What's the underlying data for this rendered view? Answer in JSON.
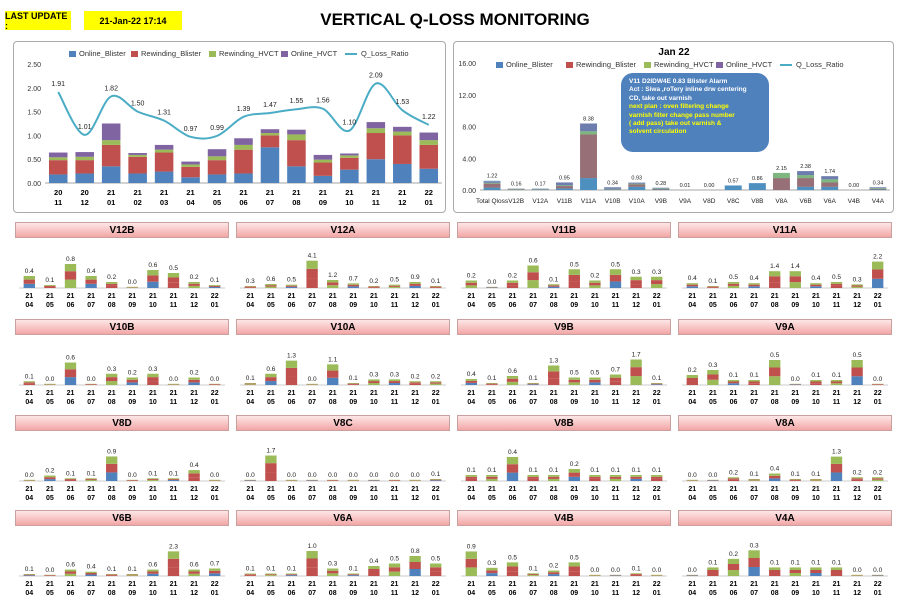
{
  "header": {
    "last_update_label": "LAST UPDATE :",
    "last_update_value": "21-Jan-22 17:14",
    "title": "VERTICAL Q-LOSS MONITORING"
  },
  "colors": {
    "online_blister": "#4f81bd",
    "rewinding_blister": "#c0504d",
    "rewinding_hvct": "#9bbb59",
    "online_hvct": "#8064a2",
    "q_loss_ratio": "#4bacc6"
  },
  "legend": [
    "Online_Blister",
    "Rewinding_Blister",
    "Rewinding_HVCT",
    "Online_HVCT",
    "Q_Loss_Ratio"
  ],
  "chart_data": [
    {
      "type": "bar",
      "id": "trend",
      "stacked": true,
      "categories": [
        "20 11",
        "20 12",
        "21 01",
        "21 02",
        "21 03",
        "21 04",
        "21 05",
        "21 06",
        "21 07",
        "21 08",
        "21 09",
        "21 10",
        "21 11",
        "21 12",
        "22 01"
      ],
      "ylim": [
        0,
        2.5
      ],
      "yticks": [
        "0.00",
        "0.50",
        "1.00",
        "1.50",
        "2.00",
        "2.50"
      ],
      "series": [
        {
          "name": "Online_Blister",
          "values": [
            0.18,
            0.2,
            0.35,
            0.2,
            0.24,
            0.12,
            0.18,
            0.2,
            0.75,
            0.35,
            0.15,
            0.28,
            0.5,
            0.4,
            0.3
          ]
        },
        {
          "name": "Rewinding_Blister",
          "values": [
            0.3,
            0.28,
            0.45,
            0.35,
            0.4,
            0.22,
            0.3,
            0.5,
            0.25,
            0.55,
            0.28,
            0.25,
            0.55,
            0.6,
            0.5
          ]
        },
        {
          "name": "Rewinding_HVCT",
          "values": [
            0.06,
            0.07,
            0.1,
            0.04,
            0.06,
            0.05,
            0.08,
            0.1,
            0.05,
            0.12,
            0.06,
            0.05,
            0.1,
            0.08,
            0.1
          ]
        },
        {
          "name": "Online_HVCT",
          "values": [
            0.1,
            0.1,
            0.35,
            0.04,
            0.1,
            0.06,
            0.15,
            0.14,
            0.08,
            0.1,
            0.1,
            0.04,
            0.13,
            0.1,
            0.16
          ]
        }
      ],
      "line": {
        "name": "Q_Loss_Ratio",
        "values": [
          1.91,
          1.01,
          1.82,
          1.5,
          1.31,
          0.97,
          0.99,
          1.39,
          1.47,
          1.55,
          1.56,
          1.1,
          2.09,
          1.53,
          1.22
        ]
      },
      "line_labels": [
        "1.91",
        "1.01",
        "1.82",
        "1.50",
        "1.31",
        "0.97",
        "0.99",
        "1.39",
        "1.47",
        "1.55",
        "1.56",
        "1.10",
        "2.09",
        "1.53",
        "1.22"
      ]
    },
    {
      "type": "bar",
      "id": "jan22",
      "stacked": true,
      "title": "Jan 22",
      "categories": [
        "Total Qloss",
        "V12B",
        "V12A",
        "V11B",
        "V11A",
        "V10B",
        "V10A",
        "V9B",
        "V9A",
        "V8D",
        "V8C",
        "V8B",
        "V8A",
        "V6B",
        "V6A",
        "V4B",
        "V4A"
      ],
      "ylim": [
        0,
        16
      ],
      "yticks": [
        "0.00",
        "4.00",
        "8.00",
        "12.00",
        "16.00"
      ],
      "series": [
        {
          "name": "Online_Blister",
          "values": [
            0.3,
            0.02,
            0.05,
            0.2,
            1.5,
            0.05,
            0.4,
            0.05,
            0,
            0,
            0.57,
            0.86,
            0,
            0.4,
            0.4,
            0,
            0.06
          ]
        },
        {
          "name": "Rewinding_Blister",
          "values": [
            0.5,
            0.05,
            0.05,
            0.3,
            5.5,
            0.06,
            0.3,
            0.08,
            0,
            0,
            0,
            0,
            1.5,
            1.1,
            0.55,
            0,
            0.1
          ]
        },
        {
          "name": "Rewinding_HVCT",
          "values": [
            0.1,
            0.05,
            0.04,
            0.1,
            0.4,
            0.05,
            0.1,
            0.08,
            0,
            0,
            0,
            0,
            0.65,
            0.38,
            0.4,
            0,
            0.1
          ]
        },
        {
          "name": "Online_HVCT",
          "values": [
            0.2,
            0.04,
            0.03,
            0.35,
            0.98,
            0.18,
            0.13,
            0.07,
            0,
            0,
            0,
            0,
            0,
            0.5,
            0.39,
            0,
            0.08
          ]
        }
      ],
      "line": {
        "name": "Q_Loss_Ratio",
        "values": [
          1.22,
          0.16,
          0.17,
          0.95,
          8.38,
          0.34,
          0.93,
          0.28,
          0.01,
          0.0,
          0.57,
          0.86,
          2.15,
          2.38,
          1.74,
          0.0,
          0.34
        ]
      },
      "line_labels": [
        "1.22",
        "0.16",
        "0.17",
        "0.95",
        "8.38",
        "0.34",
        "0.93",
        "0.28",
        "0.01",
        "0.00",
        "0.57",
        "0.86",
        "2.15",
        "2.38",
        "1.74",
        "0.00",
        "0.34"
      ]
    }
  ],
  "callout": {
    "l1": "V11 D2IDW4E 0.83 Blister Alarm",
    "l2": "Act : Siwa ,roTery inline drw centering",
    "l3": "CD, take out varnish",
    "l4": "next plan : oven filtering change",
    "l5": "varnish filter  change pass number",
    "l6": "( add pass)  take out varnish &",
    "l7": "solvent circulation"
  },
  "small_months": [
    "21 04",
    "21 05",
    "21 06",
    "21 07",
    "21 08",
    "21 09",
    "21 10",
    "21 11",
    "21 12",
    "22 01"
  ],
  "small_charts": [
    {
      "title": "V12B",
      "labels": [
        "0.4",
        "0.1",
        "0.8",
        "0.4",
        "0.2",
        "0.0",
        "0.6",
        "0.5",
        "0.2",
        "0.1"
      ],
      "values": [
        0.4,
        0.1,
        0.8,
        0.4,
        0.2,
        0.0,
        0.6,
        0.5,
        0.2,
        0.1
      ],
      "max": 1.0
    },
    {
      "title": "V12A",
      "labels": [
        "0.3",
        "0.6",
        "0.5",
        "4.1",
        "1.2",
        "0.7",
        "0.2",
        "0.5",
        "0.9",
        "0.1"
      ],
      "values": [
        0.3,
        0.6,
        0.5,
        4.1,
        1.2,
        0.7,
        0.2,
        0.5,
        0.9,
        0.1
      ],
      "max": 4.5
    },
    {
      "title": "V11B",
      "labels": [
        "0.2",
        "0.0",
        "0.2",
        "0.6",
        "0.1",
        "0.5",
        "0.2",
        "0.5",
        "0.3",
        "0.3"
      ],
      "values": [
        0.2,
        0.0,
        0.2,
        0.6,
        0.1,
        0.5,
        0.2,
        0.5,
        0.3,
        0.3
      ],
      "max": 0.8
    },
    {
      "title": "V11A",
      "labels": [
        "0.4",
        "0.1",
        "0.5",
        "0.4",
        "1.4",
        "1.4",
        "0.4",
        "0.5",
        "0.3",
        "2.2"
      ],
      "values": [
        0.4,
        0.1,
        0.5,
        0.4,
        1.4,
        1.4,
        0.4,
        0.5,
        0.3,
        2.2
      ],
      "max": 2.5
    },
    {
      "title": "V10B",
      "labels": [
        "0.1",
        "0.0",
        "0.6",
        "0.0",
        "0.3",
        "0.2",
        "0.3",
        "0.0",
        "0.2",
        "0.0"
      ],
      "values": [
        0.1,
        0.0,
        0.6,
        0.0,
        0.3,
        0.2,
        0.3,
        0.0,
        0.2,
        0.0
      ],
      "max": 0.8
    },
    {
      "title": "V10A",
      "labels": [
        "0.1",
        "0.6",
        "1.3",
        "0.0",
        "1.1",
        "0.1",
        "0.3",
        "0.3",
        "0.2",
        "0.2"
      ],
      "values": [
        0.1,
        0.6,
        1.3,
        0.0,
        1.1,
        0.1,
        0.3,
        0.3,
        0.2,
        0.2
      ],
      "max": 1.6
    },
    {
      "title": "V9B",
      "labels": [
        "0.4",
        "0.1",
        "0.6",
        "0.1",
        "1.3",
        "0.5",
        "0.5",
        "0.7",
        "1.7",
        "0.1"
      ],
      "values": [
        0.4,
        0.1,
        0.6,
        0.1,
        1.3,
        0.5,
        0.5,
        0.7,
        1.7,
        0.1
      ],
      "max": 2.0
    },
    {
      "title": "V9A",
      "labels": [
        "0.2",
        "0.3",
        "0.1",
        "0.1",
        "0.5",
        "0.0",
        "0.1",
        "0.1",
        "0.5",
        "0.0"
      ],
      "values": [
        0.2,
        0.3,
        0.1,
        0.1,
        0.5,
        0.0,
        0.1,
        0.1,
        0.5,
        0.0
      ],
      "max": 0.6
    },
    {
      "title": "V8D",
      "labels": [
        "0.0",
        "0.2",
        "0.1",
        "0.1",
        "0.9",
        "0.0",
        "0.1",
        "0.1",
        "0.4",
        "0.0"
      ],
      "values": [
        0.0,
        0.2,
        0.1,
        0.1,
        0.9,
        0.0,
        0.1,
        0.1,
        0.4,
        0.0
      ],
      "max": 1.1
    },
    {
      "title": "V8C",
      "labels": [
        "0.0",
        "1.7",
        "0.0",
        "0.0",
        "0.0",
        "0.0",
        "0.0",
        "0.0",
        "0.0",
        "0.1"
      ],
      "values": [
        0.0,
        1.7,
        0.0,
        0.0,
        0.0,
        0.0,
        0.0,
        0.0,
        0.0,
        0.1
      ],
      "max": 2.0
    },
    {
      "title": "V8B",
      "labels": [
        "0.1",
        "0.1",
        "0.4",
        "0.1",
        "0.1",
        "0.2",
        "0.1",
        "0.1",
        "0.1",
        "0.1"
      ],
      "values": [
        0.1,
        0.1,
        0.4,
        0.1,
        0.1,
        0.2,
        0.1,
        0.1,
        0.1,
        0.1
      ],
      "max": 0.5
    },
    {
      "title": "V8A",
      "labels": [
        "0.0",
        "0.0",
        "0.2",
        "0.1",
        "0.4",
        "0.1",
        "0.1",
        "1.3",
        "0.2",
        "0.2"
      ],
      "values": [
        0.0,
        0.0,
        0.2,
        0.1,
        0.4,
        0.1,
        0.1,
        1.3,
        0.2,
        0.2
      ],
      "max": 1.6
    },
    {
      "title": "V6B",
      "labels": [
        "0.1",
        "0.0",
        "0.6",
        "0.4",
        "0.1",
        "0.1",
        "0.6",
        "2.3",
        "0.6",
        "0.7"
      ],
      "values": [
        0.1,
        0.0,
        0.6,
        0.4,
        0.1,
        0.1,
        0.6,
        2.3,
        0.6,
        0.7
      ],
      "max": 2.8
    },
    {
      "title": "V6A",
      "labels": [
        "0.1",
        "0.1",
        "0.1",
        "1.0",
        "0.3",
        "0.1",
        "0.4",
        "0.5",
        "0.8",
        "0.5"
      ],
      "values": [
        0.1,
        0.1,
        0.1,
        1.0,
        0.3,
        0.1,
        0.4,
        0.5,
        0.8,
        0.5
      ],
      "max": 1.2
    },
    {
      "title": "V4B",
      "labels": [
        "0.9",
        "0.3",
        "0.5",
        "0.1",
        "0.2",
        "0.5",
        "0.0",
        "0.0",
        "0.1",
        "0.0"
      ],
      "values": [
        0.9,
        0.3,
        0.5,
        0.1,
        0.2,
        0.5,
        0.0,
        0.0,
        0.1,
        0.0
      ],
      "max": 1.1
    },
    {
      "title": "V4A",
      "labels": [
        "0.0",
        "0.1",
        "0.2",
        "0.3",
        "0.1",
        "0.1",
        "0.1",
        "0.1",
        "0.0",
        "0.0"
      ],
      "values": [
        0.0,
        0.1,
        0.2,
        0.3,
        0.1,
        0.1,
        0.1,
        0.1,
        0.0,
        0.0
      ],
      "max": 0.35
    }
  ]
}
